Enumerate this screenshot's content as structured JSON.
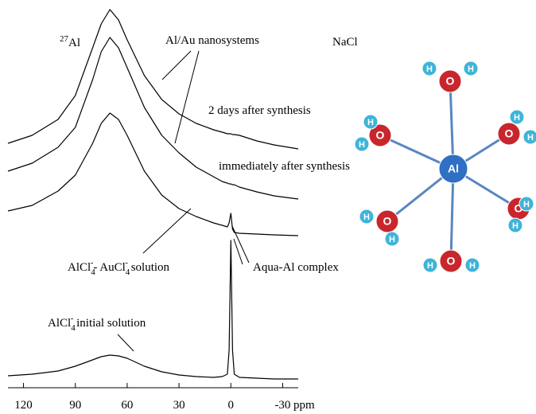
{
  "chart_data": {
    "type": "line",
    "x": [
      129,
      115,
      100,
      90,
      80,
      75,
      70,
      65,
      60,
      50,
      40,
      30,
      20,
      10,
      5,
      2,
      1,
      0,
      -1,
      -2,
      -5,
      -15,
      -25,
      -39
    ],
    "series": [
      {
        "color": "#000000",
        "values": [
          307,
          317,
          337,
          367,
          427,
          457,
          475,
          462,
          437,
          392,
          362,
          344,
          332,
          324,
          321,
          319,
          319,
          319,
          318,
          318,
          317,
          310,
          305,
          300
        ]
      },
      {
        "color": "#000000",
        "values": [
          272,
          282,
          302,
          327,
          387,
          422,
          440,
          427,
          402,
          352,
          317,
          295,
          277,
          265,
          259,
          257,
          256,
          256,
          255,
          255,
          252,
          246,
          241,
          237
        ]
      },
      {
        "color": "#000000",
        "values": [
          222,
          229,
          247,
          267,
          307,
          332,
          345,
          337,
          317,
          272,
          242,
          225,
          215,
          207,
          204,
          202,
          207,
          219,
          199,
          195,
          194,
          193,
          192,
          191
        ]
      },
      {
        "color": "#000000",
        "values": [
          15,
          17,
          21,
          27,
          35,
          39,
          41,
          40,
          37,
          27,
          20,
          16,
          14,
          13,
          14,
          17,
          47,
          185,
          47,
          17,
          13,
          12,
          11,
          11
        ]
      }
    ],
    "xlim": [
      129,
      -39
    ],
    "ylim": [
      0,
      480
    ],
    "xticks": [
      120,
      90,
      60,
      30,
      0,
      -30
    ],
    "xlabel": "ppm",
    "annotations": [
      {
        "parts": [
          "27",
          "Al"
        ]
      },
      {
        "text": "Al/Au nanosystems"
      },
      {
        "text": "NaCl"
      },
      {
        "text": "2 days after synthesis"
      },
      {
        "text": "immediately after synthesis"
      },
      {
        "parts": [
          "AlCl",
          "4",
          "-",
          "- AuCl",
          "4",
          "-",
          "  solution"
        ]
      },
      {
        "text": "Aqua-Al complex"
      },
      {
        "parts": [
          "AlCl",
          "4",
          "-",
          "  initial solution"
        ]
      }
    ]
  },
  "molecule": {
    "nodes": [
      {
        "label": "Al"
      },
      {
        "label": "O"
      },
      {
        "label": "O"
      },
      {
        "label": "O"
      },
      {
        "label": "O"
      },
      {
        "label": "O"
      },
      {
        "label": "O"
      },
      {
        "label": "H"
      },
      {
        "label": "H"
      },
      {
        "label": "H"
      },
      {
        "label": "H"
      },
      {
        "label": "H"
      },
      {
        "label": "H"
      },
      {
        "label": "H"
      },
      {
        "label": "H"
      },
      {
        "label": "H"
      },
      {
        "label": "H"
      },
      {
        "label": "H"
      },
      {
        "label": "H"
      }
    ]
  }
}
